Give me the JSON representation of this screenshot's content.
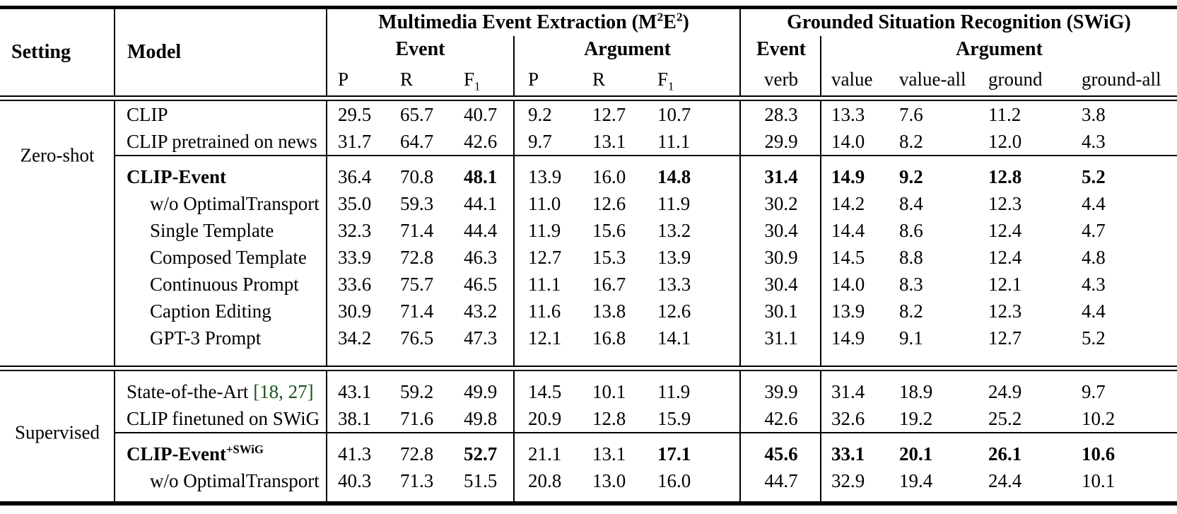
{
  "rule_color": "#000000",
  "citation_color": "#1a531a",
  "header": {
    "setting": "Setting",
    "model": "Model",
    "m2e2": {
      "prefix": "Multimedia Event Extraction (M",
      "sup1": "2",
      "mid": "E",
      "sup2": "2",
      "suffix": ")"
    },
    "swig": "Grounded Situation Recognition (SWiG)",
    "m2e2_event": "Event",
    "m2e2_argument": "Argument",
    "swig_event": "Event",
    "swig_argument": "Argument",
    "metrics": {
      "event_p": "P",
      "event_r": "R",
      "event_f1_base": "F",
      "event_f1_sub": "1",
      "arg_p": "P",
      "arg_r": "R",
      "arg_f1_base": "F",
      "arg_f1_sub": "1",
      "verb": "verb",
      "value": "value",
      "value_all": "value-all",
      "ground": "ground",
      "ground_all": "ground-all"
    }
  },
  "sections": [
    {
      "label": "Zero-shot",
      "groups": [
        [
          {
            "model": "CLIP",
            "indent": false,
            "bold": false,
            "sup": "",
            "citation": "",
            "values": [
              "29.5",
              "65.7",
              "40.7",
              "9.2",
              "12.7",
              "10.7",
              "28.3",
              "13.3",
              "7.6",
              "11.2",
              "3.8"
            ],
            "bold_values": []
          },
          {
            "model": "CLIP pretrained on news",
            "indent": false,
            "bold": false,
            "sup": "",
            "citation": "",
            "values": [
              "31.7",
              "64.7",
              "42.6",
              "9.7",
              "13.1",
              "11.1",
              "29.9",
              "14.0",
              "8.2",
              "12.0",
              "4.3"
            ],
            "bold_values": []
          }
        ],
        [
          {
            "model": "CLIP-Event",
            "indent": false,
            "bold": true,
            "sup": "",
            "citation": "",
            "values": [
              "36.4",
              "70.8",
              "48.1",
              "13.9",
              "16.0",
              "14.8",
              "31.4",
              "14.9",
              "9.2",
              "12.8",
              "5.2"
            ],
            "bold_values": [
              2,
              5,
              6,
              7,
              8,
              9,
              10
            ]
          },
          {
            "model": "w/o OptimalTransport",
            "indent": true,
            "bold": false,
            "sup": "",
            "citation": "",
            "values": [
              "35.0",
              "59.3",
              "44.1",
              "11.0",
              "12.6",
              "11.9",
              "30.2",
              "14.2",
              "8.4",
              "12.3",
              "4.4"
            ],
            "bold_values": []
          },
          {
            "model": "Single Template",
            "indent": true,
            "bold": false,
            "sup": "",
            "citation": "",
            "values": [
              "32.3",
              "71.4",
              "44.4",
              "11.9",
              "15.6",
              "13.2",
              "30.4",
              "14.4",
              "8.6",
              "12.4",
              "4.7"
            ],
            "bold_values": []
          },
          {
            "model": "Composed Template",
            "indent": true,
            "bold": false,
            "sup": "",
            "citation": "",
            "values": [
              "33.9",
              "72.8",
              "46.3",
              "12.7",
              "15.3",
              "13.9",
              "30.9",
              "14.5",
              "8.8",
              "12.4",
              "4.8"
            ],
            "bold_values": []
          },
          {
            "model": "Continuous Prompt",
            "indent": true,
            "bold": false,
            "sup": "",
            "citation": "",
            "values": [
              "33.6",
              "75.7",
              "46.5",
              "11.1",
              "16.7",
              "13.3",
              "30.4",
              "14.0",
              "8.3",
              "12.1",
              "4.3"
            ],
            "bold_values": []
          },
          {
            "model": "Caption Editing",
            "indent": true,
            "bold": false,
            "sup": "",
            "citation": "",
            "values": [
              "30.9",
              "71.4",
              "43.2",
              "11.6",
              "13.8",
              "12.6",
              "30.1",
              "13.9",
              "8.2",
              "12.3",
              "4.4"
            ],
            "bold_values": []
          },
          {
            "model": "GPT-3 Prompt",
            "indent": true,
            "bold": false,
            "sup": "",
            "citation": "",
            "values": [
              "34.2",
              "76.5",
              "47.3",
              "12.1",
              "16.8",
              "14.1",
              "31.1",
              "14.9",
              "9.1",
              "12.7",
              "5.2"
            ],
            "bold_values": []
          }
        ]
      ]
    },
    {
      "label": "Supervised",
      "groups": [
        [
          {
            "model": "State-of-the-Art ",
            "indent": false,
            "bold": false,
            "sup": "",
            "citation": "[18, 27]",
            "values": [
              "43.1",
              "59.2",
              "49.9",
              "14.5",
              "10.1",
              "11.9",
              "39.9",
              "31.4",
              "18.9",
              "24.9",
              "9.7"
            ],
            "bold_values": []
          },
          {
            "model": "CLIP finetuned on SWiG",
            "indent": false,
            "bold": false,
            "sup": "",
            "citation": "",
            "values": [
              "38.1",
              "71.6",
              "49.8",
              "20.9",
              "12.8",
              "15.9",
              "42.6",
              "32.6",
              "19.2",
              "25.2",
              "10.2"
            ],
            "bold_values": []
          }
        ],
        [
          {
            "model": "CLIP-Event",
            "indent": false,
            "bold": true,
            "sup": "+SWiG",
            "citation": "",
            "values": [
              "41.3",
              "72.8",
              "52.7",
              "21.1",
              "13.1",
              "17.1",
              "45.6",
              "33.1",
              "20.1",
              "26.1",
              "10.6"
            ],
            "bold_values": [
              2,
              5,
              6,
              7,
              8,
              9,
              10
            ]
          },
          {
            "model": "w/o OptimalTransport",
            "indent": true,
            "bold": false,
            "sup": "",
            "citation": "",
            "values": [
              "40.3",
              "71.3",
              "51.5",
              "20.8",
              "13.0",
              "16.0",
              "44.7",
              "32.9",
              "19.4",
              "24.4",
              "10.1"
            ],
            "bold_values": []
          }
        ]
      ]
    }
  ]
}
